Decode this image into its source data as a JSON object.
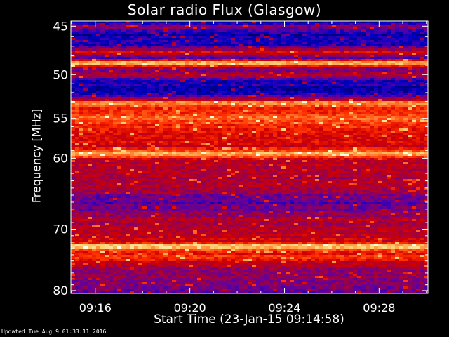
{
  "chart_data": {
    "type": "heatmap",
    "title": "Solar radio Flux (Glasgow)",
    "xlabel": "Start Time (23-Jan-15 09:14:58)",
    "ylabel": "Frequency [MHz]",
    "x_ticks": [
      "09:16",
      "09:20",
      "09:24",
      "09:28"
    ],
    "x_tick_minutes": [
      1.033,
      5.033,
      9.033,
      13.033
    ],
    "x_range_minutes": [
      0,
      15.1
    ],
    "y_ticks": [
      45,
      50,
      55,
      60,
      70,
      80
    ],
    "y_scale": "log",
    "y_range": [
      44.5,
      80.5
    ],
    "y_direction": "increasing downward",
    "colormap": [
      "#000060",
      "#0000c8",
      "#6000a0",
      "#a00040",
      "#d00000",
      "#ff3000",
      "#ff8030",
      "#ffd070",
      "#ffffe0"
    ],
    "intensity_profile": [
      {
        "mhz": 44.5,
        "level": 0.05
      },
      {
        "mhz": 45.0,
        "level": 0.3
      },
      {
        "mhz": 45.8,
        "level": 0.1
      },
      {
        "mhz": 47.0,
        "level": 0.15
      },
      {
        "mhz": 47.6,
        "level": 0.55
      },
      {
        "mhz": 48.2,
        "level": 0.2
      },
      {
        "mhz": 48.8,
        "level": 0.95
      },
      {
        "mhz": 49.4,
        "level": 0.25
      },
      {
        "mhz": 50.0,
        "level": 0.45
      },
      {
        "mhz": 50.6,
        "level": 0.15
      },
      {
        "mhz": 52.0,
        "level": 0.12
      },
      {
        "mhz": 52.8,
        "level": 0.4
      },
      {
        "mhz": 53.2,
        "level": 0.85
      },
      {
        "mhz": 53.8,
        "level": 0.55
      },
      {
        "mhz": 55.0,
        "level": 0.7
      },
      {
        "mhz": 56.5,
        "level": 0.55
      },
      {
        "mhz": 58.5,
        "level": 0.5
      },
      {
        "mhz": 59.4,
        "level": 0.88
      },
      {
        "mhz": 60.2,
        "level": 0.45
      },
      {
        "mhz": 62.0,
        "level": 0.4
      },
      {
        "mhz": 64.0,
        "level": 0.42
      },
      {
        "mhz": 65.5,
        "level": 0.25
      },
      {
        "mhz": 67.0,
        "level": 0.28
      },
      {
        "mhz": 68.5,
        "level": 0.4
      },
      {
        "mhz": 70.5,
        "level": 0.42
      },
      {
        "mhz": 72.0,
        "level": 0.5
      },
      {
        "mhz": 72.6,
        "level": 0.92
      },
      {
        "mhz": 73.5,
        "level": 0.55
      },
      {
        "mhz": 74.5,
        "level": 0.62
      },
      {
        "mhz": 76.5,
        "level": 0.3
      },
      {
        "mhz": 78.5,
        "level": 0.35
      },
      {
        "mhz": 80.5,
        "level": 0.22
      }
    ],
    "grid": false,
    "legend": "none"
  },
  "footer": {
    "updated": "Updated Tue Aug  9 01:33:11 2016"
  }
}
